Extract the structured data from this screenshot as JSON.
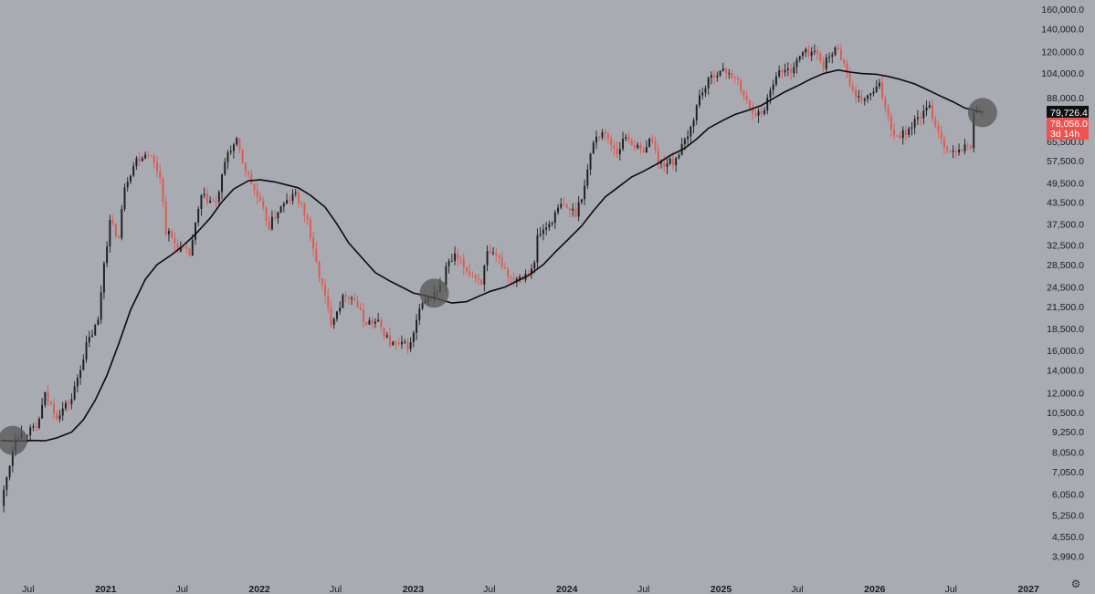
{
  "chart_data": {
    "type": "candlestick",
    "scale": "log",
    "ylim": [
      3600,
      170000
    ],
    "xlim": [
      "2020-04-25",
      "2027-01-31"
    ],
    "y_ticks": [
      "160,000.0",
      "140,000.0",
      "120,000.0",
      "104,000.0",
      "88,000.0",
      "65,500.0",
      "57,500.0",
      "49,500.0",
      "43,500.0",
      "37,500.0",
      "32,500.0",
      "28,500.0",
      "24,500.0",
      "21,500.0",
      "18,500.0",
      "16,000.0",
      "14,000.0",
      "12,000.0",
      "10,500.0",
      "9,250.0",
      "8,050.0",
      "7,050.0",
      "6,050.0",
      "5,250.0",
      "4,550.0",
      "3,990.0"
    ],
    "x_ticks": [
      {
        "label": "Jul",
        "date": "2020-07-01",
        "year": false
      },
      {
        "label": "2021",
        "date": "2021-01-01",
        "year": true
      },
      {
        "label": "Jul",
        "date": "2021-07-01",
        "year": false
      },
      {
        "label": "2022",
        "date": "2022-01-01",
        "year": true
      },
      {
        "label": "Jul",
        "date": "2022-07-01",
        "year": false
      },
      {
        "label": "2023",
        "date": "2023-01-01",
        "year": true
      },
      {
        "label": "Jul",
        "date": "2023-07-01",
        "year": false
      },
      {
        "label": "2024",
        "date": "2024-01-01",
        "year": true
      },
      {
        "label": "Jul",
        "date": "2024-07-01",
        "year": false
      },
      {
        "label": "2025",
        "date": "2025-01-01",
        "year": true
      },
      {
        "label": "Jul",
        "date": "2025-07-01",
        "year": false
      },
      {
        "label": "2026",
        "date": "2026-01-01",
        "year": true
      },
      {
        "label": "Jul",
        "date": "2026-07-01",
        "year": false
      },
      {
        "label": "2027",
        "date": "2027-01-01",
        "year": true
      }
    ],
    "price_path": [
      [
        "2020-04-27",
        5600
      ],
      [
        "2020-06-01",
        9000
      ],
      [
        "2020-07-20",
        9400
      ],
      [
        "2020-08-10",
        11800
      ],
      [
        "2020-09-07",
        10300
      ],
      [
        "2020-10-12",
        11500
      ],
      [
        "2020-11-16",
        16500
      ],
      [
        "2020-12-14",
        19500
      ],
      [
        "2020-12-28",
        29000
      ],
      [
        "2021-01-11",
        38000
      ],
      [
        "2021-02-01",
        34000
      ],
      [
        "2021-02-15",
        49000
      ],
      [
        "2021-03-15",
        58000
      ],
      [
        "2021-04-12",
        61000
      ],
      [
        "2021-05-10",
        52000
      ],
      [
        "2021-05-24",
        36000
      ],
      [
        "2021-06-21",
        32000
      ],
      [
        "2021-07-19",
        30500
      ],
      [
        "2021-08-16",
        45000
      ],
      [
        "2021-09-20",
        43000
      ],
      [
        "2021-10-18",
        61000
      ],
      [
        "2021-11-08",
        65000
      ],
      [
        "2021-11-22",
        57000
      ],
      [
        "2021-12-20",
        47000
      ],
      [
        "2022-01-24",
        37000
      ],
      [
        "2022-02-14",
        41000
      ],
      [
        "2022-03-28",
        46000
      ],
      [
        "2022-04-25",
        38500
      ],
      [
        "2022-05-09",
        31000
      ],
      [
        "2022-06-13",
        21000
      ],
      [
        "2022-06-20",
        19500
      ],
      [
        "2022-07-25",
        23500
      ],
      [
        "2022-08-15",
        22500
      ],
      [
        "2022-09-05",
        19500
      ],
      [
        "2022-10-10",
        19200
      ],
      [
        "2022-11-07",
        16800
      ],
      [
        "2022-11-28",
        16500
      ],
      [
        "2022-12-26",
        16600
      ],
      [
        "2023-01-16",
        21000
      ],
      [
        "2023-02-13",
        23000
      ],
      [
        "2023-03-13",
        25000
      ],
      [
        "2023-03-20",
        28000
      ],
      [
        "2023-04-10",
        30000
      ],
      [
        "2023-05-08",
        27500
      ],
      [
        "2023-06-12",
        25500
      ],
      [
        "2023-06-26",
        30500
      ],
      [
        "2023-07-24",
        29500
      ],
      [
        "2023-08-21",
        26000
      ],
      [
        "2023-09-18",
        26500
      ],
      [
        "2023-10-16",
        28500
      ],
      [
        "2023-10-23",
        34500
      ],
      [
        "2023-11-20",
        37500
      ],
      [
        "2023-12-18",
        42500
      ],
      [
        "2024-01-22",
        40500
      ],
      [
        "2024-02-12",
        48500
      ],
      [
        "2024-03-04",
        66000
      ],
      [
        "2024-03-25",
        70000
      ],
      [
        "2024-04-29",
        61000
      ],
      [
        "2024-05-20",
        68000
      ],
      [
        "2024-06-24",
        61000
      ],
      [
        "2024-07-22",
        67000
      ],
      [
        "2024-08-05",
        56000
      ],
      [
        "2024-09-09",
        57000
      ],
      [
        "2024-10-14",
        67000
      ],
      [
        "2024-11-11",
        89000
      ],
      [
        "2024-12-16",
        104000
      ],
      [
        "2025-01-20",
        105000
      ],
      [
        "2025-02-10",
        97000
      ],
      [
        "2025-03-10",
        82000
      ],
      [
        "2025-04-07",
        78000
      ],
      [
        "2025-05-12",
        104000
      ],
      [
        "2025-06-16",
        106000
      ],
      [
        "2025-07-14",
        119000
      ],
      [
        "2025-08-11",
        120000
      ],
      [
        "2025-09-01",
        110000
      ],
      [
        "2025-10-06",
        124000
      ],
      [
        "2025-10-20",
        110000
      ],
      [
        "2025-11-17",
        86000
      ],
      [
        "2025-12-15",
        88000
      ],
      [
        "2026-01-12",
        95000
      ],
      [
        "2026-02-02",
        78000
      ],
      [
        "2026-02-16",
        68000
      ],
      [
        "2026-03-16",
        70000
      ],
      [
        "2026-04-20",
        78000
      ],
      [
        "2026-05-11",
        82000
      ],
      [
        "2026-06-01",
        70000
      ],
      [
        "2026-06-22",
        62000
      ],
      [
        "2026-07-13",
        60000
      ],
      [
        "2026-08-03",
        63000
      ],
      [
        "2026-08-17",
        64000
      ],
      [
        "2026-08-24",
        78000
      ],
      [
        "2026-08-31",
        82000
      ],
      [
        "2026-09-14",
        78056
      ]
    ],
    "moving_average": [
      [
        "2020-04-27",
        8700
      ],
      [
        "2020-06-01",
        8650
      ],
      [
        "2020-07-06",
        8700
      ],
      [
        "2020-08-10",
        8680
      ],
      [
        "2020-09-07",
        8850
      ],
      [
        "2020-10-12",
        9200
      ],
      [
        "2020-11-09",
        10000
      ],
      [
        "2020-12-07",
        11400
      ],
      [
        "2021-01-04",
        13500
      ],
      [
        "2021-02-01",
        16700
      ],
      [
        "2021-03-01",
        21000
      ],
      [
        "2021-04-05",
        25800
      ],
      [
        "2021-05-03",
        28500
      ],
      [
        "2021-06-07",
        30500
      ],
      [
        "2021-07-05",
        32500
      ],
      [
        "2021-08-02",
        35000
      ],
      [
        "2021-09-06",
        39000
      ],
      [
        "2021-10-04",
        43500
      ],
      [
        "2021-11-01",
        47500
      ],
      [
        "2021-12-06",
        50200
      ],
      [
        "2022-01-03",
        50500
      ],
      [
        "2022-02-07",
        49800
      ],
      [
        "2022-03-07",
        48800
      ],
      [
        "2022-04-04",
        47800
      ],
      [
        "2022-05-02",
        45500
      ],
      [
        "2022-06-06",
        42000
      ],
      [
        "2022-07-04",
        37500
      ],
      [
        "2022-08-01",
        33000
      ],
      [
        "2022-09-05",
        29500
      ],
      [
        "2022-10-03",
        27000
      ],
      [
        "2022-11-07",
        25500
      ],
      [
        "2022-12-05",
        24500
      ],
      [
        "2023-01-02",
        23500
      ],
      [
        "2023-02-06",
        23000
      ],
      [
        "2023-03-06",
        22500
      ],
      [
        "2023-04-03",
        22000
      ],
      [
        "2023-05-08",
        22200
      ],
      [
        "2023-06-05",
        23000
      ],
      [
        "2023-07-03",
        23800
      ],
      [
        "2023-08-07",
        24500
      ],
      [
        "2023-09-04",
        25500
      ],
      [
        "2023-10-02",
        26500
      ],
      [
        "2023-11-06",
        28500
      ],
      [
        "2023-12-04",
        31000
      ],
      [
        "2024-01-01",
        33500
      ],
      [
        "2024-02-05",
        37000
      ],
      [
        "2024-03-04",
        41000
      ],
      [
        "2024-04-01",
        45000
      ],
      [
        "2024-05-06",
        48500
      ],
      [
        "2024-06-03",
        51500
      ],
      [
        "2024-07-01",
        53500
      ],
      [
        "2024-08-05",
        56500
      ],
      [
        "2024-09-02",
        59500
      ],
      [
        "2024-10-07",
        62500
      ],
      [
        "2024-11-04",
        66500
      ],
      [
        "2024-12-02",
        71500
      ],
      [
        "2025-01-06",
        75500
      ],
      [
        "2025-02-03",
        78500
      ],
      [
        "2025-03-03",
        80500
      ],
      [
        "2025-04-07",
        83500
      ],
      [
        "2025-05-05",
        87500
      ],
      [
        "2025-06-02",
        91500
      ],
      [
        "2025-07-07",
        96000
      ],
      [
        "2025-08-04",
        100000
      ],
      [
        "2025-09-01",
        103500
      ],
      [
        "2025-10-06",
        106000
      ],
      [
        "2025-11-03",
        104500
      ],
      [
        "2025-12-01",
        103500
      ],
      [
        "2026-01-05",
        103000
      ],
      [
        "2026-02-02",
        101500
      ],
      [
        "2026-03-02",
        99500
      ],
      [
        "2026-04-06",
        96500
      ],
      [
        "2026-05-04",
        93000
      ],
      [
        "2026-06-01",
        89500
      ],
      [
        "2026-07-06",
        85500
      ],
      [
        "2026-08-03",
        82000
      ],
      [
        "2026-09-14",
        79726
      ]
    ],
    "highlight_circles": [
      {
        "date": "2020-05-25",
        "value": 8700
      },
      {
        "date": "2023-02-20",
        "value": 23500
      },
      {
        "date": "2026-09-14",
        "value": 79500
      }
    ],
    "last_price": {
      "value": 78056.0,
      "label": "78,056.0",
      "countdown": "3d 14h",
      "color": "#ef5350"
    },
    "ma_price": {
      "value": 79726.4,
      "label": "79,726.4",
      "color": "#111111"
    },
    "colors": {
      "background": "#a9abb3",
      "up": "#1e1e1e",
      "down": "#e0594f",
      "ma_line": "#0b0b0b",
      "circle": "#555555"
    },
    "grid": false,
    "legend": "none"
  }
}
